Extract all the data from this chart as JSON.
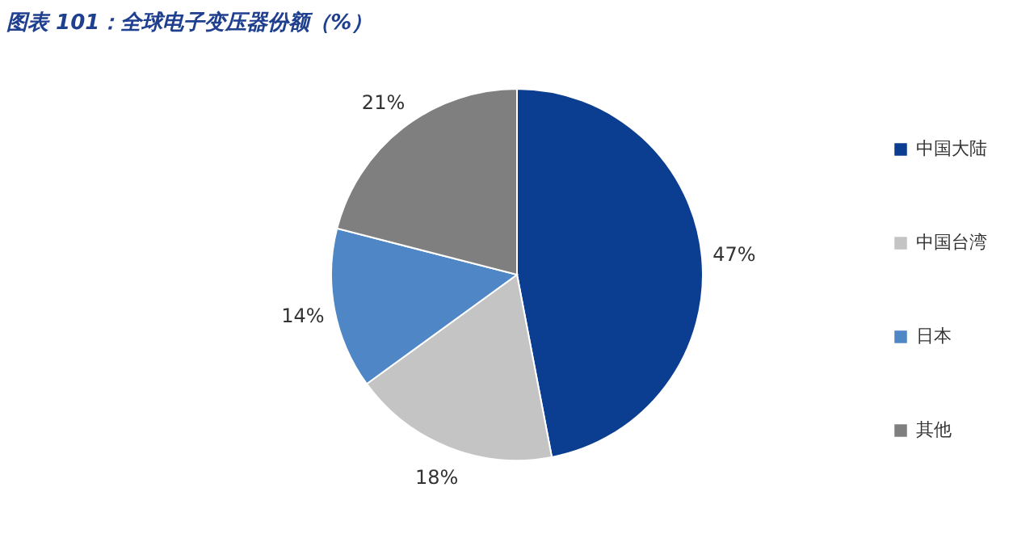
{
  "chart_data": {
    "type": "pie",
    "title": "图表 101：全球电子变压器份额（%）",
    "categories": [
      "中国大陆",
      "中国台湾",
      "日本",
      "其他"
    ],
    "values": [
      47,
      18,
      14,
      21
    ],
    "colors": [
      "#0b3d91",
      "#c4c4c4",
      "#4e86c6",
      "#7f7f7f"
    ],
    "value_labels": [
      "47%",
      "18%",
      "14%",
      "21%"
    ],
    "legend": "right"
  }
}
